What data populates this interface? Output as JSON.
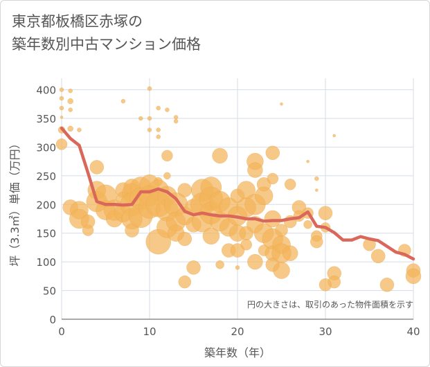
{
  "title_lines": [
    "東京都板橋区赤塚の",
    "築年数別中古マンション価格"
  ],
  "chart_data": {
    "type": "scatter",
    "xlabel": "築年数（年）",
    "ylabel": "坪（3.3㎡）単価（万円）",
    "xlim": [
      0,
      40
    ],
    "ylim": [
      0,
      420
    ],
    "x_ticks": [
      0,
      10,
      20,
      30,
      40
    ],
    "y_ticks": [
      0,
      50,
      100,
      150,
      200,
      250,
      300,
      350,
      400
    ],
    "grid": true,
    "annotation": "円の大きさは、取引のあった物件面積を示す",
    "colors": {
      "bubble": "#f2b45a",
      "line": "#d9675a",
      "grid": "#d5dde6"
    },
    "bubbles": [
      {
        "x": 0,
        "y": 400,
        "s": 3
      },
      {
        "x": 0,
        "y": 385,
        "s": 3
      },
      {
        "x": 0,
        "y": 368,
        "s": 3
      },
      {
        "x": 0,
        "y": 352,
        "s": 2
      },
      {
        "x": 0,
        "y": 330,
        "s": 5
      },
      {
        "x": 0,
        "y": 305,
        "s": 8
      },
      {
        "x": 1,
        "y": 398,
        "s": 3
      },
      {
        "x": 1,
        "y": 380,
        "s": 4
      },
      {
        "x": 1,
        "y": 365,
        "s": 3
      },
      {
        "x": 1,
        "y": 332,
        "s": 4
      },
      {
        "x": 2,
        "y": 330,
        "s": 3
      },
      {
        "x": 1,
        "y": 195,
        "s": 11
      },
      {
        "x": 2,
        "y": 190,
        "s": 13
      },
      {
        "x": 2,
        "y": 175,
        "s": 14
      },
      {
        "x": 3,
        "y": 170,
        "s": 10
      },
      {
        "x": 3,
        "y": 155,
        "s": 8
      },
      {
        "x": 4,
        "y": 265,
        "s": 10
      },
      {
        "x": 4,
        "y": 225,
        "s": 13
      },
      {
        "x": 4,
        "y": 205,
        "s": 15
      },
      {
        "x": 5,
        "y": 215,
        "s": 16
      },
      {
        "x": 5,
        "y": 190,
        "s": 14
      },
      {
        "x": 6,
        "y": 190,
        "s": 15
      },
      {
        "x": 6,
        "y": 175,
        "s": 12
      },
      {
        "x": 7,
        "y": 380,
        "s": 3
      },
      {
        "x": 7,
        "y": 225,
        "s": 11
      },
      {
        "x": 7,
        "y": 210,
        "s": 10
      },
      {
        "x": 7,
        "y": 185,
        "s": 13
      },
      {
        "x": 8,
        "y": 230,
        "s": 12
      },
      {
        "x": 8,
        "y": 220,
        "s": 14
      },
      {
        "x": 8,
        "y": 200,
        "s": 17
      },
      {
        "x": 8,
        "y": 175,
        "s": 15
      },
      {
        "x": 8,
        "y": 155,
        "s": 10
      },
      {
        "x": 9,
        "y": 350,
        "s": 3
      },
      {
        "x": 9,
        "y": 230,
        "s": 15
      },
      {
        "x": 9,
        "y": 210,
        "s": 16
      },
      {
        "x": 9,
        "y": 180,
        "s": 17
      },
      {
        "x": 10,
        "y": 402,
        "s": 3
      },
      {
        "x": 10,
        "y": 350,
        "s": 3
      },
      {
        "x": 10,
        "y": 330,
        "s": 3
      },
      {
        "x": 10,
        "y": 235,
        "s": 14
      },
      {
        "x": 10,
        "y": 215,
        "s": 15
      },
      {
        "x": 10,
        "y": 195,
        "s": 16
      },
      {
        "x": 11,
        "y": 368,
        "s": 3
      },
      {
        "x": 11,
        "y": 330,
        "s": 3
      },
      {
        "x": 11,
        "y": 318,
        "s": 3
      },
      {
        "x": 11,
        "y": 240,
        "s": 6
      },
      {
        "x": 11,
        "y": 225,
        "s": 15
      },
      {
        "x": 11,
        "y": 200,
        "s": 18
      },
      {
        "x": 11,
        "y": 135,
        "s": 18
      },
      {
        "x": 12,
        "y": 365,
        "s": 3
      },
      {
        "x": 12,
        "y": 285,
        "s": 8
      },
      {
        "x": 12,
        "y": 250,
        "s": 5
      },
      {
        "x": 12,
        "y": 215,
        "s": 14
      },
      {
        "x": 12,
        "y": 190,
        "s": 16
      },
      {
        "x": 12,
        "y": 160,
        "s": 15
      },
      {
        "x": 13,
        "y": 352,
        "s": 3
      },
      {
        "x": 13,
        "y": 345,
        "s": 3
      },
      {
        "x": 13,
        "y": 200,
        "s": 17
      },
      {
        "x": 13,
        "y": 170,
        "s": 14
      },
      {
        "x": 13,
        "y": 150,
        "s": 12
      },
      {
        "x": 14,
        "y": 225,
        "s": 10
      },
      {
        "x": 14,
        "y": 180,
        "s": 13
      },
      {
        "x": 14,
        "y": 140,
        "s": 10
      },
      {
        "x": 14,
        "y": 65,
        "s": 9
      },
      {
        "x": 15,
        "y": 195,
        "s": 12
      },
      {
        "x": 15,
        "y": 165,
        "s": 11
      },
      {
        "x": 15,
        "y": 90,
        "s": 10
      },
      {
        "x": 16,
        "y": 225,
        "s": 16
      },
      {
        "x": 16,
        "y": 200,
        "s": 17
      },
      {
        "x": 16,
        "y": 170,
        "s": 15
      },
      {
        "x": 17,
        "y": 230,
        "s": 15
      },
      {
        "x": 17,
        "y": 210,
        "s": 17
      },
      {
        "x": 17,
        "y": 185,
        "s": 16
      },
      {
        "x": 17,
        "y": 145,
        "s": 12
      },
      {
        "x": 18,
        "y": 285,
        "s": 11
      },
      {
        "x": 18,
        "y": 205,
        "s": 15
      },
      {
        "x": 18,
        "y": 170,
        "s": 14
      },
      {
        "x": 18,
        "y": 95,
        "s": 6
      },
      {
        "x": 19,
        "y": 195,
        "s": 14
      },
      {
        "x": 19,
        "y": 160,
        "s": 13
      },
      {
        "x": 19,
        "y": 120,
        "s": 10
      },
      {
        "x": 20,
        "y": 215,
        "s": 10
      },
      {
        "x": 20,
        "y": 180,
        "s": 14
      },
      {
        "x": 20,
        "y": 150,
        "s": 12
      },
      {
        "x": 20,
        "y": 120,
        "s": 10
      },
      {
        "x": 20,
        "y": 90,
        "s": 3
      },
      {
        "x": 21,
        "y": 225,
        "s": 13
      },
      {
        "x": 21,
        "y": 195,
        "s": 14
      },
      {
        "x": 21,
        "y": 150,
        "s": 10
      },
      {
        "x": 21,
        "y": 130,
        "s": 8
      },
      {
        "x": 22,
        "y": 275,
        "s": 12
      },
      {
        "x": 22,
        "y": 260,
        "s": 11
      },
      {
        "x": 22,
        "y": 200,
        "s": 15
      },
      {
        "x": 22,
        "y": 165,
        "s": 12
      },
      {
        "x": 22,
        "y": 100,
        "s": 11
      },
      {
        "x": 23,
        "y": 235,
        "s": 10
      },
      {
        "x": 23,
        "y": 215,
        "s": 13
      },
      {
        "x": 23,
        "y": 150,
        "s": 14
      },
      {
        "x": 23,
        "y": 120,
        "s": 8
      },
      {
        "x": 24,
        "y": 290,
        "s": 10
      },
      {
        "x": 24,
        "y": 245,
        "s": 8
      },
      {
        "x": 24,
        "y": 175,
        "s": 12
      },
      {
        "x": 24,
        "y": 140,
        "s": 15
      },
      {
        "x": 24,
        "y": 115,
        "s": 11
      },
      {
        "x": 24,
        "y": 95,
        "s": 10
      },
      {
        "x": 25,
        "y": 375,
        "s": 2
      },
      {
        "x": 25,
        "y": 155,
        "s": 9
      },
      {
        "x": 25,
        "y": 130,
        "s": 13
      },
      {
        "x": 25,
        "y": 115,
        "s": 14
      },
      {
        "x": 25,
        "y": 85,
        "s": 12
      },
      {
        "x": 26,
        "y": 235,
        "s": 8
      },
      {
        "x": 26,
        "y": 170,
        "s": 9
      },
      {
        "x": 26,
        "y": 115,
        "s": 11
      },
      {
        "x": 27,
        "y": 195,
        "s": 10
      },
      {
        "x": 27,
        "y": 180,
        "s": 8
      },
      {
        "x": 28,
        "y": 275,
        "s": 2
      },
      {
        "x": 28,
        "y": 185,
        "s": 8
      },
      {
        "x": 28,
        "y": 165,
        "s": 6
      },
      {
        "x": 29,
        "y": 245,
        "s": 3
      },
      {
        "x": 29,
        "y": 225,
        "s": 2
      },
      {
        "x": 29,
        "y": 145,
        "s": 8
      },
      {
        "x": 29,
        "y": 135,
        "s": 9
      },
      {
        "x": 30,
        "y": 185,
        "s": 10
      },
      {
        "x": 30,
        "y": 160,
        "s": 7
      },
      {
        "x": 30,
        "y": 60,
        "s": 9
      },
      {
        "x": 31,
        "y": 320,
        "s": 2
      },
      {
        "x": 31,
        "y": 80,
        "s": 10
      },
      {
        "x": 31,
        "y": 65,
        "s": 9
      },
      {
        "x": 35,
        "y": 130,
        "s": 9
      },
      {
        "x": 36,
        "y": 110,
        "s": 10
      },
      {
        "x": 37,
        "y": 60,
        "s": 10
      },
      {
        "x": 39,
        "y": 120,
        "s": 9
      },
      {
        "x": 40,
        "y": 85,
        "s": 10
      },
      {
        "x": 40,
        "y": 75,
        "s": 11
      }
    ],
    "trend_line": {
      "x": [
        0,
        1,
        2,
        3,
        4,
        5,
        6,
        7,
        8,
        9,
        10,
        11,
        12,
        13,
        14,
        15,
        16,
        17,
        18,
        19,
        20,
        21,
        22,
        23,
        24,
        25,
        26,
        27,
        28,
        29,
        30,
        31,
        32,
        33,
        34,
        35,
        36,
        37,
        38,
        39,
        40
      ],
      "y": [
        333,
        315,
        303,
        255,
        205,
        200,
        200,
        199,
        200,
        222,
        222,
        227,
        222,
        210,
        188,
        182,
        185,
        182,
        180,
        180,
        178,
        175,
        175,
        171,
        172,
        172,
        175,
        177,
        187,
        162,
        160,
        151,
        138,
        138,
        144,
        140,
        137,
        127,
        117,
        113,
        105
      ]
    }
  }
}
